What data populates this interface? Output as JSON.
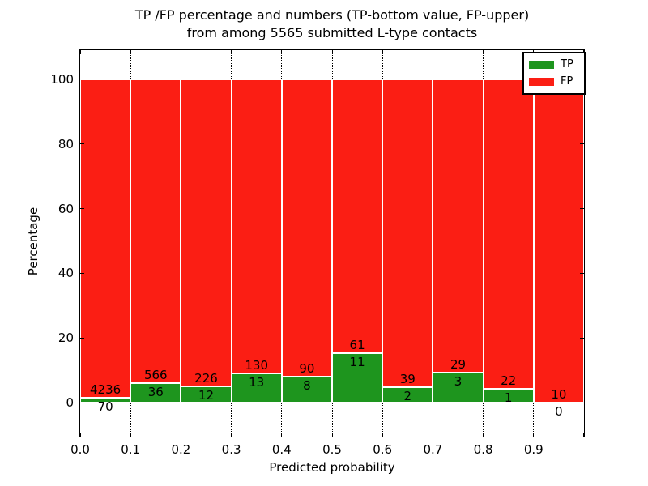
{
  "chart_data": {
    "type": "bar",
    "stacked": true,
    "title_line1": "TP /FP percentage and numbers (TP-bottom value, FP-upper)",
    "title_line2": "from among 5565 submitted L-type contacts",
    "xlabel": "Predicted probability",
    "ylabel": "Percentage",
    "total_contacts": 5565,
    "x_ticks": [
      0.0,
      0.1,
      0.2,
      0.3,
      0.4,
      0.5,
      0.6,
      0.7,
      0.8,
      0.9
    ],
    "y_ticks": [
      0,
      20,
      40,
      60,
      80,
      100
    ],
    "xlim": [
      0.0,
      1.0
    ],
    "ylim": [
      -10.5,
      109
    ],
    "grid": "dotted",
    "legend": {
      "position": "upper right",
      "entries": [
        {
          "label": "TP",
          "color": "#1e951e"
        },
        {
          "label": "FP",
          "color": "#fb1e14"
        }
      ]
    },
    "colors": {
      "tp": "#1e951e",
      "fp": "#fb1e14",
      "grid": "#000000",
      "axis": "#000000",
      "bar_edge": "#ffffff"
    },
    "bins": [
      {
        "range": [
          0.0,
          0.1
        ],
        "tp": 70,
        "fp": 4236
      },
      {
        "range": [
          0.1,
          0.2
        ],
        "tp": 36,
        "fp": 566
      },
      {
        "range": [
          0.2,
          0.3
        ],
        "tp": 12,
        "fp": 226
      },
      {
        "range": [
          0.3,
          0.4
        ],
        "tp": 13,
        "fp": 130
      },
      {
        "range": [
          0.4,
          0.5
        ],
        "tp": 8,
        "fp": 90
      },
      {
        "range": [
          0.5,
          0.6
        ],
        "tp": 11,
        "fp": 61
      },
      {
        "range": [
          0.6,
          0.7
        ],
        "tp": 2,
        "fp": 39
      },
      {
        "range": [
          0.7,
          0.8
        ],
        "tp": 3,
        "fp": 29
      },
      {
        "range": [
          0.8,
          0.9
        ],
        "tp": 1,
        "fp": 22
      },
      {
        "range": [
          0.9,
          1.0
        ],
        "tp": 0,
        "fp": 10
      }
    ]
  }
}
